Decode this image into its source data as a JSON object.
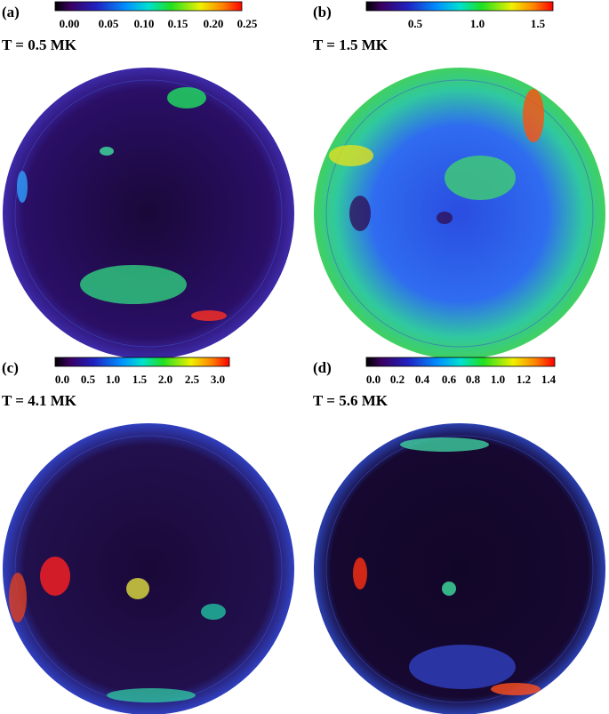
{
  "panels": [
    {
      "label": "(a)",
      "temperature": "T = 0.5 MK",
      "ticks": [
        "0.00",
        "0.05",
        "0.10",
        "0.15",
        "0.20",
        "0.25"
      ]
    },
    {
      "label": "(b)",
      "temperature": "T = 1.5 MK",
      "ticks": [
        "0.5",
        "1.0",
        "1.5"
      ]
    },
    {
      "label": "(c)",
      "temperature": "T = 4.1 MK",
      "ticks": [
        "0.0",
        "0.5",
        "1.0",
        "1.5",
        "2.0",
        "2.5",
        "3.0"
      ]
    },
    {
      "label": "(d)",
      "temperature": "T = 5.6 MK",
      "ticks": [
        "0.0",
        "0.2",
        "0.4",
        "0.6",
        "0.8",
        "1.0",
        "1.2",
        "1.4"
      ]
    }
  ]
}
